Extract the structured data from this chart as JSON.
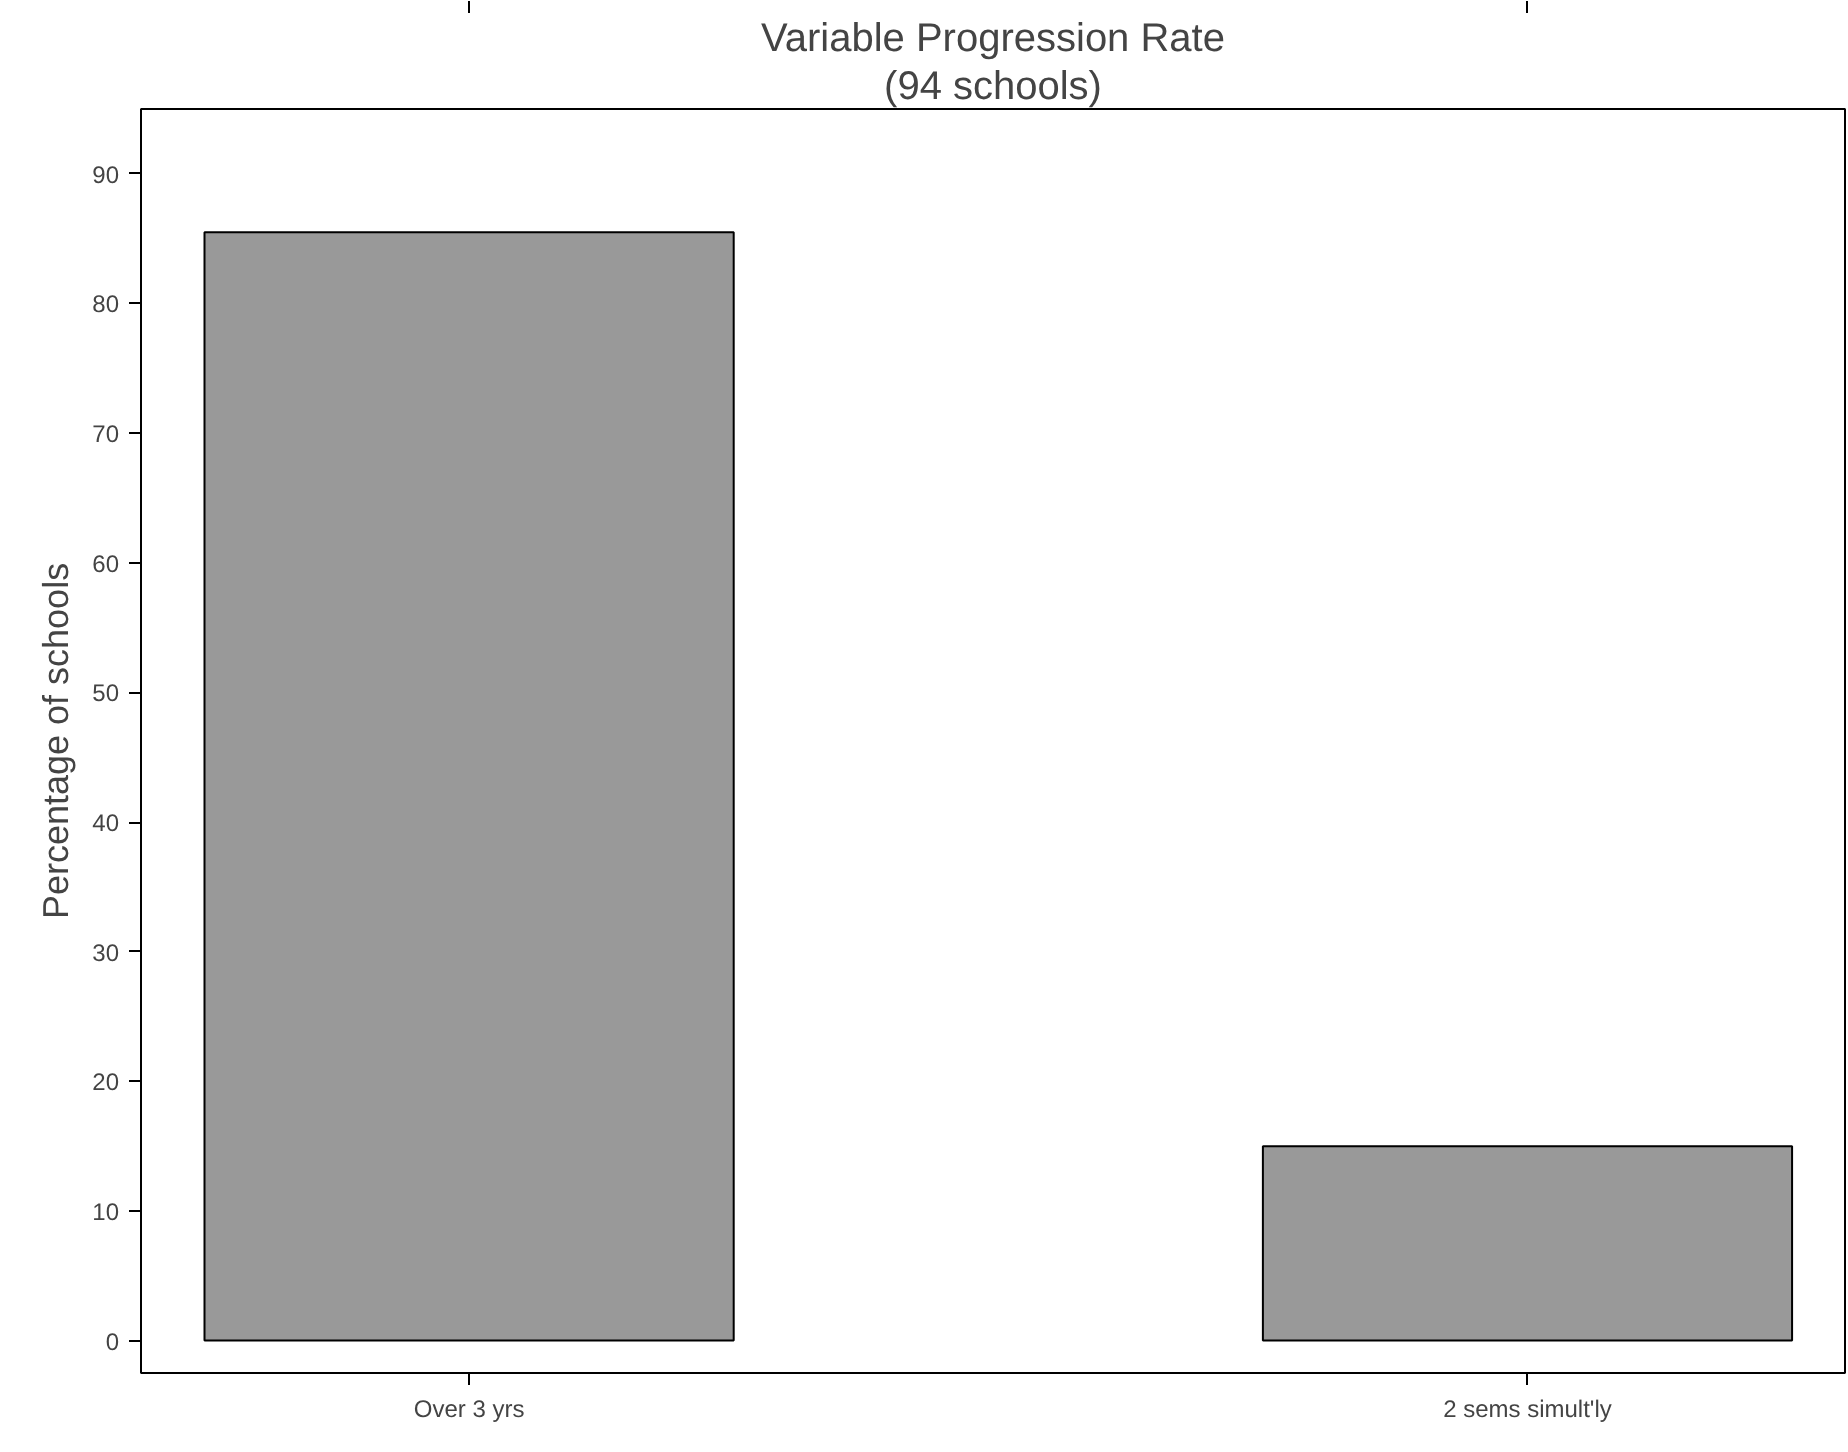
{
  "chart_data": {
    "type": "bar",
    "title": "Variable Progression Rate",
    "subtitle": "(94 schools)",
    "ylabel": "Percentage of schools",
    "categories": [
      "Over 3 yrs",
      "2 sems simult'ly"
    ],
    "values": [
      85.5,
      15
    ],
    "color": "#999999",
    "ylim": [
      -2.5,
      95
    ],
    "yticks": [
      0,
      10,
      20,
      30,
      40,
      50,
      60,
      70,
      80,
      90
    ],
    "grid": false
  }
}
